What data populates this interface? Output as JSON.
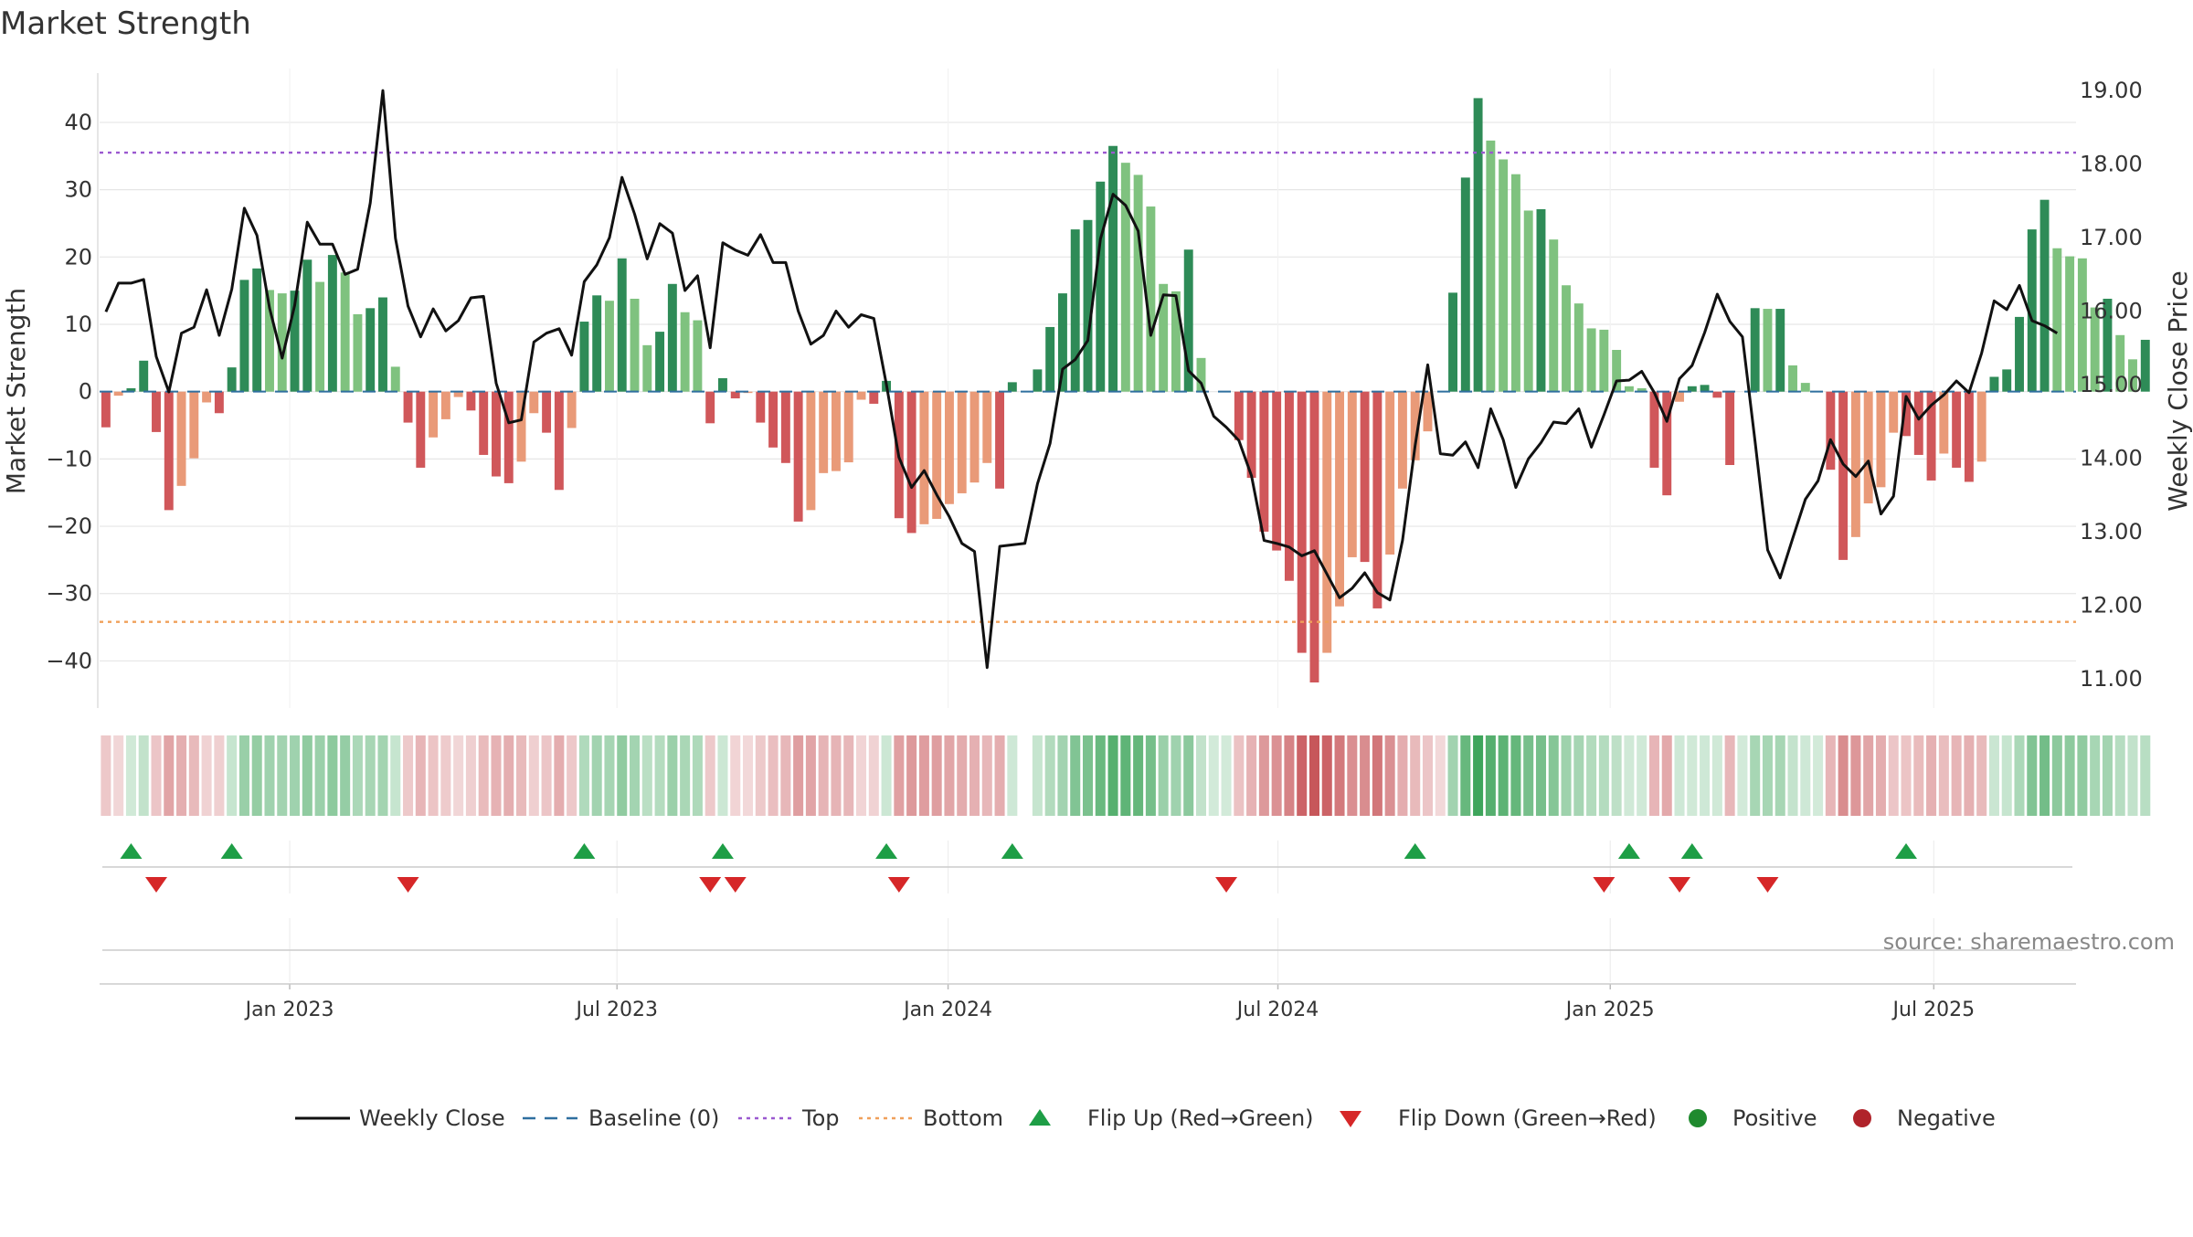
{
  "chart_data": {
    "type": "bar",
    "title": "Market Strength",
    "ylabel_left": "Market Strength",
    "ylabel_right": "Weekly Close Price",
    "ylim_left": [
      -47,
      48
    ],
    "ylim_right": [
      10.6,
      19.3
    ],
    "yticks_left": [
      40,
      30,
      20,
      10,
      0,
      -10,
      -20,
      -30,
      -40
    ],
    "yticks_left_labels": [
      "40",
      "30",
      "20",
      "10",
      "0",
      "−10",
      "−20",
      "−30",
      "−40"
    ],
    "yticks_right": [
      19,
      18,
      17,
      16,
      15,
      14,
      13,
      12,
      11
    ],
    "yticks_right_labels": [
      "19.00",
      "18.00",
      "17.00",
      "16.00",
      "15.00",
      "14.00",
      "13.00",
      "12.00",
      "11.00"
    ],
    "x_week_range": [
      0,
      157
    ],
    "x_tick_weeks": [
      15.1,
      41.1,
      67.4,
      93.6,
      120.0,
      145.7
    ],
    "x_tick_labels": [
      "Jan 2023",
      "Jul 2023",
      "Jan 2024",
      "Jul 2024",
      "Jan 2025",
      "Jul 2025"
    ],
    "top_line": 35.5,
    "bottom_line": -34.2,
    "baseline": 0,
    "strength": [
      -5.3,
      -0.6,
      0.5,
      4.6,
      -6.0,
      -17.6,
      -14.0,
      -9.9,
      -1.6,
      -3.2,
      3.6,
      16.6,
      18.3,
      15.1,
      14.6,
      15.0,
      19.6,
      16.3,
      20.3,
      17.7,
      11.5,
      12.4,
      14.0,
      3.7,
      -4.6,
      -11.3,
      -6.8,
      -4.1,
      -0.8,
      -2.8,
      -9.4,
      -12.6,
      -13.6,
      -10.4,
      -3.2,
      -6.1,
      -14.6,
      -5.4,
      10.4,
      14.3,
      13.5,
      19.8,
      13.8,
      6.9,
      8.9,
      16.0,
      11.8,
      10.6,
      -4.7,
      2.0,
      -1.0,
      -0.2,
      -4.6,
      -8.3,
      -10.6,
      -19.3,
      -17.6,
      -12.1,
      -11.8,
      -10.5,
      -1.2,
      -1.8,
      1.6,
      -18.8,
      -21.0,
      -19.7,
      -18.9,
      -16.7,
      -15.1,
      -13.5,
      -10.6,
      -14.4,
      1.4,
      0.0,
      3.3,
      9.6,
      14.6,
      24.1,
      25.5,
      31.2,
      36.5,
      34.0,
      32.2,
      27.5,
      16.0,
      14.9,
      21.1,
      5.0,
      0.0,
      0.0,
      -7.2,
      -12.8,
      -20.8,
      -23.6,
      -28.1,
      -38.8,
      -43.2,
      -38.8,
      -31.9,
      -24.6,
      -25.3,
      -32.2,
      -24.2,
      -14.4,
      -10.2,
      -5.9,
      0.0,
      14.7,
      31.8,
      43.6,
      37.3,
      34.5,
      32.3,
      26.9,
      27.1,
      22.6,
      15.8,
      13.1,
      9.4,
      9.2,
      6.2,
      0.8,
      0.5,
      -11.3,
      -15.4,
      -1.5,
      0.8,
      1.0,
      -0.9,
      -10.9,
      0.0,
      12.4,
      12.3,
      12.3,
      3.9,
      1.3,
      0.0,
      -11.6,
      -25.0,
      -21.6,
      -16.6,
      -14.2,
      -6.1,
      -6.6,
      -9.4,
      -13.2,
      -9.2,
      -11.3,
      -13.4,
      -10.4,
      2.2,
      3.3,
      11.1,
      24.1,
      28.5,
      21.3,
      20.1,
      19.8,
      12.5,
      13.8,
      8.4,
      4.8,
      7.7
    ],
    "price": [
      15.99,
      16.38,
      16.38,
      16.43,
      15.38,
      14.9,
      15.7,
      15.78,
      16.29,
      15.67,
      16.3,
      17.4,
      17.03,
      16.04,
      15.36,
      16.08,
      17.21,
      16.91,
      16.91,
      16.5,
      16.57,
      17.47,
      19.0,
      16.99,
      16.07,
      15.65,
      16.03,
      15.73,
      15.87,
      16.18,
      16.2,
      15.02,
      14.48,
      14.52,
      15.58,
      15.7,
      15.76,
      15.4,
      16.4,
      16.63,
      17.0,
      17.82,
      17.32,
      16.71,
      17.19,
      17.06,
      16.28,
      16.48,
      15.5,
      16.93,
      16.83,
      16.76,
      17.04,
      16.66,
      16.66,
      16.0,
      15.55,
      15.67,
      16.0,
      15.78,
      15.95,
      15.9,
      15.0,
      14.01,
      13.6,
      13.83,
      13.5,
      13.2,
      12.84,
      12.73,
      11.15,
      12.8,
      12.82,
      12.84,
      13.65,
      14.2,
      15.21,
      15.34,
      15.6,
      16.98,
      17.59,
      17.44,
      17.09,
      15.67,
      16.22,
      16.21,
      15.19,
      15.02,
      14.57,
      14.42,
      14.24,
      13.76,
      12.88,
      12.84,
      12.79,
      12.67,
      12.74,
      12.42,
      12.1,
      12.23,
      12.44,
      12.17,
      12.07,
      12.88,
      14.17,
      15.27,
      14.06,
      14.04,
      14.22,
      13.87,
      14.67,
      14.25,
      13.6,
      13.99,
      14.21,
      14.49,
      14.47,
      14.67,
      14.15,
      14.59,
      15.05,
      15.06,
      15.18,
      14.89,
      14.5,
      15.08,
      15.26,
      15.71,
      16.23,
      15.86,
      15.65,
      14.23,
      12.75,
      12.37,
      12.91,
      13.44,
      13.69,
      14.25,
      13.92,
      13.75,
      13.96,
      13.24,
      13.48,
      14.84,
      14.53,
      14.72,
      14.86,
      15.05,
      14.89,
      15.43,
      16.14,
      16.02,
      16.35,
      15.87,
      15.8,
      15.7
    ],
    "regime": [
      -1,
      -1,
      1,
      1,
      -1,
      -1,
      -1,
      -1,
      -1,
      -1,
      1,
      1,
      1,
      1,
      1,
      1,
      1,
      1,
      1,
      1,
      1,
      1,
      1,
      1,
      -1,
      -1,
      -1,
      -1,
      -1,
      -1,
      -1,
      -1,
      -1,
      -1,
      -1,
      -1,
      -1,
      -1,
      1,
      1,
      1,
      1,
      1,
      1,
      1,
      1,
      1,
      1,
      -1,
      1,
      -1,
      -1,
      -1,
      -1,
      -1,
      -1,
      -1,
      -1,
      -1,
      -1,
      -1,
      -1,
      1,
      -1,
      -1,
      -1,
      -1,
      -1,
      -1,
      -1,
      -1,
      -1,
      1,
      0,
      1,
      1,
      1,
      1,
      1,
      1,
      1,
      1,
      1,
      1,
      1,
      1,
      1,
      1,
      1,
      1,
      -1,
      -1,
      -1,
      -1,
      -1,
      -1,
      -1,
      -1,
      -1,
      -1,
      -1,
      -1,
      -1,
      -1,
      -1,
      -1,
      -1,
      1,
      1,
      1,
      1,
      1,
      1,
      1,
      1,
      1,
      1,
      1,
      1,
      1,
      1,
      1,
      1,
      -1,
      -1,
      1,
      1,
      1,
      1,
      -1,
      1,
      1,
      1,
      1,
      1,
      1,
      1,
      -1,
      -1,
      -1,
      -1,
      -1,
      -1,
      -1,
      -1,
      -1,
      -1,
      -1,
      -1,
      -1,
      1,
      1,
      1,
      1,
      1,
      1,
      1,
      1,
      1,
      1,
      1,
      1,
      1
    ],
    "flip_up_weeks": [
      2.5,
      10.5,
      38.5,
      49.5,
      62.5,
      72.5,
      104.5,
      121.5,
      126.5,
      143.5
    ],
    "flip_down_weeks": [
      4.5,
      24.5,
      48.5,
      50.5,
      63.5,
      89.5,
      119.5,
      125.5,
      132.5
    ],
    "legend": [
      {
        "label": "Weekly Close",
        "marker": "line",
        "color": "#111111"
      },
      {
        "label": "Baseline (0)",
        "marker": "dash",
        "color": "#2f6f9f"
      },
      {
        "label": "Top",
        "marker": "dot",
        "color": "#9b59d0"
      },
      {
        "label": "Bottom",
        "marker": "dot",
        "color": "#f0a05a"
      },
      {
        "label": "Flip Up (Red→Green)",
        "marker": "tri-up",
        "color": "#1e9e46"
      },
      {
        "label": "Flip Down (Green→Red)",
        "marker": "tri-down",
        "color": "#d62728"
      },
      {
        "label": "Positive",
        "marker": "circle",
        "color": "#1f8a2e"
      },
      {
        "label": "Negative",
        "marker": "circle",
        "color": "#b0232a"
      }
    ],
    "source": "source: sharemaestro.com",
    "colors": {
      "pos_strong": "#2e8b57",
      "pos_weak": "#7fc27f",
      "neg_strong": "#d0575a",
      "neg_weak": "#e99a78",
      "price_line": "#111111",
      "baseline": "#2f6f9f",
      "top_line": "#9b59d0",
      "bottom_line": "#f0a05a",
      "flip_up": "#1e9e46",
      "flip_down": "#d62728",
      "grid": "#e6e6e6"
    }
  }
}
